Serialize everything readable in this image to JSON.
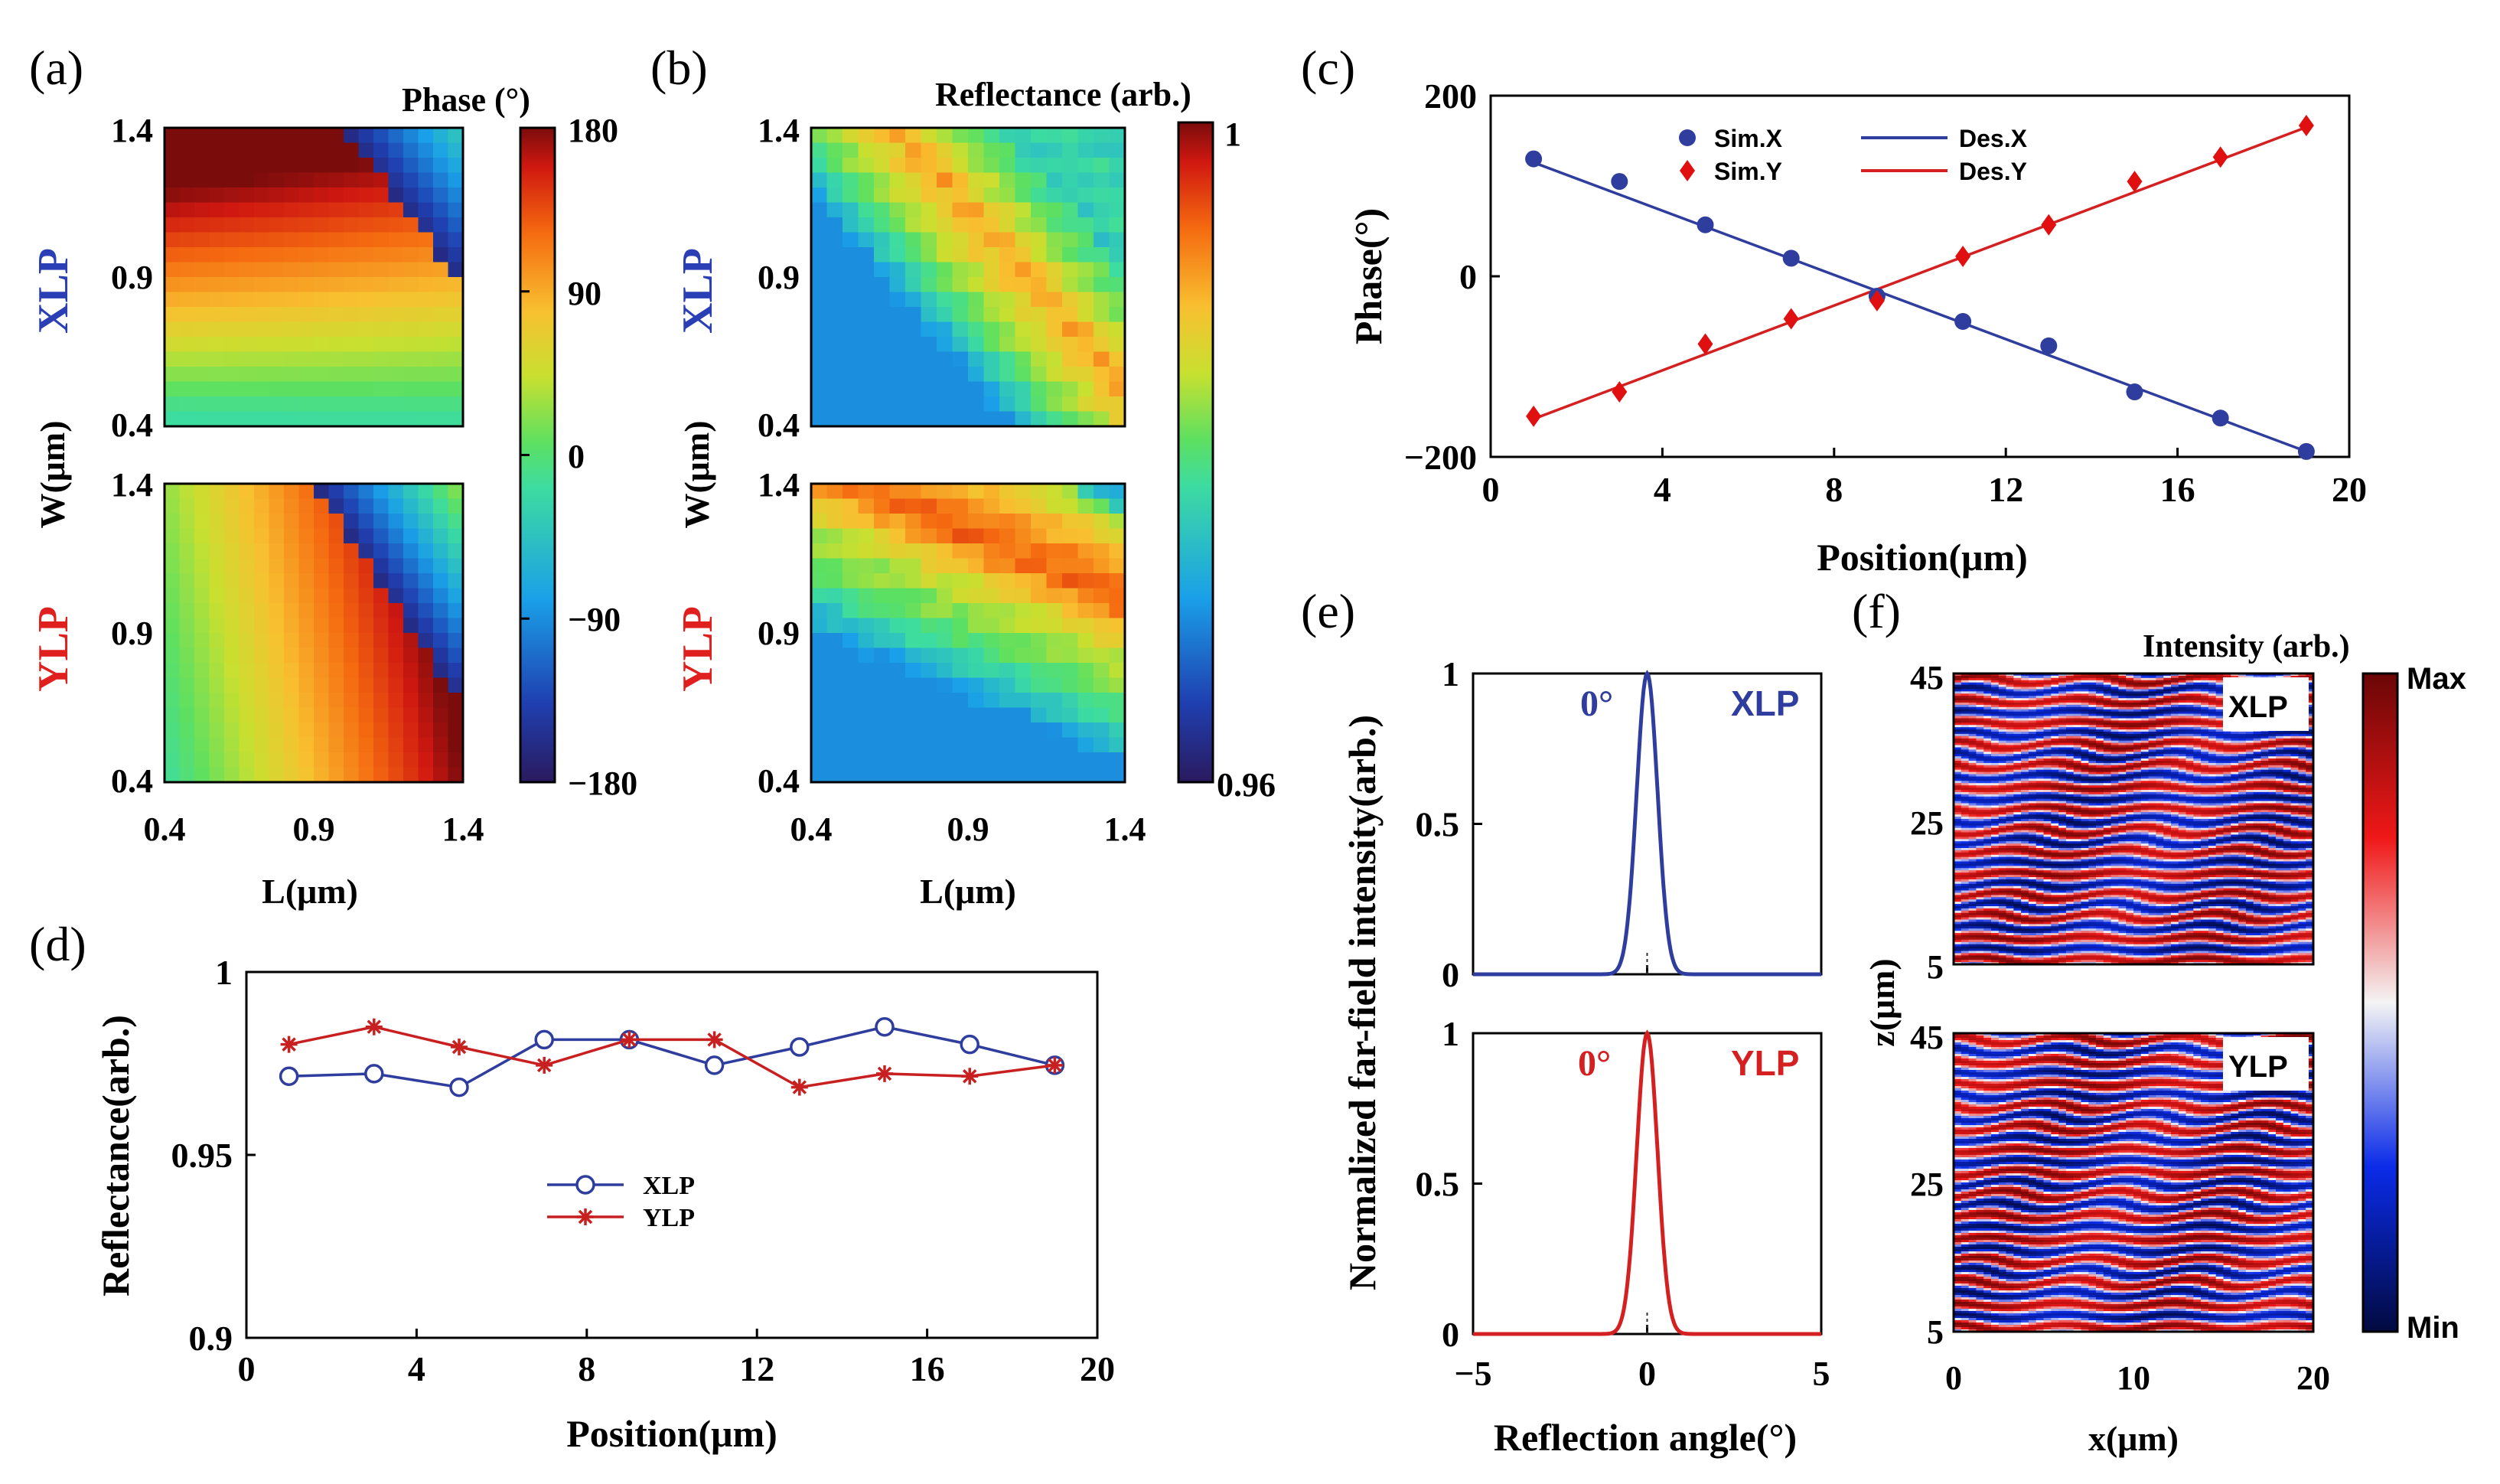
{
  "panel_labels": [
    "(a)",
    "(b)",
    "(c)",
    "(d)",
    "(e)",
    "(f)"
  ],
  "colors": {
    "blue": "#2f3e9e",
    "red": "#d42020",
    "xlp": "#2a3fb5",
    "ylp": "#e0201f"
  },
  "chart_data": [
    {
      "id": "a",
      "type": "heatmap",
      "title": "Phase (°)",
      "xlabel": "L(μm)",
      "ylabel": "W(μm)",
      "row_labels": [
        "XLP",
        "YLP"
      ],
      "xticks": [
        "0.4",
        "0.9",
        "1.4"
      ],
      "yticks": [
        "1.4",
        "0.9",
        "0.4"
      ],
      "xlim": [
        0.4,
        1.4
      ],
      "ylim": [
        0.4,
        1.4
      ],
      "colorbar": {
        "min": -180,
        "max": 180,
        "ticks": [
          "180",
          "90",
          "0",
          "−90",
          "−180"
        ],
        "tick_values": [
          180,
          90,
          0,
          -90,
          -180
        ]
      }
    },
    {
      "id": "b",
      "type": "heatmap",
      "title": "Reflectance (arb.)",
      "xlabel": "L(μm)",
      "ylabel": "W(μm)",
      "row_labels": [
        "XLP",
        "YLP"
      ],
      "xticks": [
        "0.4",
        "0.9",
        "1.4"
      ],
      "yticks": [
        "1.4",
        "0.9",
        "0.4"
      ],
      "xlim": [
        0.4,
        1.4
      ],
      "ylim": [
        0.4,
        1.4
      ],
      "colorbar": {
        "min": 0.96,
        "max": 1,
        "ticks": [
          "1",
          "0.96"
        ],
        "tick_values": [
          1,
          0.96
        ]
      }
    },
    {
      "id": "c",
      "type": "scatter",
      "xlabel": "Position(μm)",
      "ylabel": "Phase(°)",
      "xlim": [
        0,
        20
      ],
      "ylim": [
        -200,
        200
      ],
      "xticks": [
        "0",
        "4",
        "8",
        "12",
        "16",
        "20"
      ],
      "xtick_values": [
        0,
        4,
        8,
        12,
        16,
        20
      ],
      "yticks": [
        "200",
        "0",
        "−200"
      ],
      "ytick_values": [
        200,
        0,
        -200
      ],
      "legend": [
        "Sim.X",
        "Des.X",
        "Sim.Y",
        "Des.Y"
      ],
      "series": [
        {
          "name": "Sim.X",
          "kind": "points",
          "marker": "circle",
          "color": "#2f3e9e",
          "x": [
            1,
            3,
            5,
            7,
            9,
            11,
            13,
            15,
            17,
            19
          ],
          "y": [
            130,
            105,
            57,
            20,
            -22,
            -50,
            -77,
            -128,
            -157,
            -194
          ]
        },
        {
          "name": "Des.X",
          "kind": "line",
          "color": "#2f3e9e",
          "x": [
            1,
            19
          ],
          "y": [
            126,
            -194
          ]
        },
        {
          "name": "Sim.Y",
          "kind": "points",
          "marker": "diamond",
          "color": "#e01010",
          "x": [
            1,
            3,
            5,
            7,
            9,
            11,
            13,
            15,
            17,
            19
          ],
          "y": [
            -155,
            -128,
            -75,
            -47,
            -27,
            22,
            57,
            105,
            132,
            167
          ]
        },
        {
          "name": "Des.Y",
          "kind": "line",
          "color": "#d42020",
          "x": [
            1,
            19
          ],
          "y": [
            -158,
            165
          ]
        }
      ]
    },
    {
      "id": "d",
      "type": "line",
      "xlabel": "Position(μm)",
      "ylabel": "Reflectance(arb.)",
      "xlim": [
        0,
        20
      ],
      "ylim": [
        0.9,
        1
      ],
      "xticks": [
        "0",
        "4",
        "8",
        "12",
        "16",
        "20"
      ],
      "xtick_values": [
        0,
        4,
        8,
        12,
        16,
        20
      ],
      "yticks": [
        "1",
        "0.95",
        "0.9"
      ],
      "ytick_values": [
        1,
        0.95,
        0.9
      ],
      "legend": [
        "XLP",
        "YLP"
      ],
      "series": [
        {
          "name": "XLP",
          "marker": "circle",
          "color": "#2f3e9e",
          "x": [
            1,
            3,
            5,
            7,
            9,
            11,
            13,
            15,
            17,
            19
          ],
          "y": [
            0.9715,
            0.9722,
            0.9685,
            0.9815,
            0.9815,
            0.9745,
            0.9795,
            0.985,
            0.9802,
            0.9745
          ]
        },
        {
          "name": "YLP",
          "marker": "star",
          "color": "#c82020",
          "x": [
            1,
            3,
            5,
            7,
            9,
            11,
            13,
            15,
            17,
            19
          ],
          "y": [
            0.9802,
            0.985,
            0.9795,
            0.9745,
            0.9815,
            0.9815,
            0.9685,
            0.9722,
            0.9715,
            0.9745
          ]
        }
      ]
    },
    {
      "id": "e",
      "type": "line",
      "xlabel": "Reflection angle(°)",
      "ylabel": "Normalized far-field intensity(arb.)",
      "xlim": [
        -5,
        5
      ],
      "ylim": [
        0,
        1
      ],
      "xticks": [
        "−5",
        "0",
        "5"
      ],
      "xtick_values": [
        -5,
        0,
        5
      ],
      "yticks": [
        "1",
        "0.5",
        "0"
      ],
      "ytick_values": [
        1,
        0.5,
        0
      ],
      "subplots": [
        {
          "label": "XLP",
          "peak_label": "0°",
          "color": "#2f3e9e",
          "peak_x": 0,
          "sigma": 0.3
        },
        {
          "label": "YLP",
          "peak_label": "0°",
          "color": "#d42020",
          "peak_x": 0,
          "sigma": 0.3
        }
      ]
    },
    {
      "id": "f",
      "type": "heatmap",
      "title": "Intensity (arb.)",
      "xlabel": "x(μm)",
      "ylabel": "z(μm)",
      "xlim": [
        0,
        20
      ],
      "ylim": [
        5,
        45
      ],
      "xticks": [
        "0",
        "10",
        "20"
      ],
      "yticks": [
        "45",
        "25",
        "5"
      ],
      "subplots": [
        "XLP",
        "YLP"
      ],
      "colorbar": {
        "ticks": [
          "Max",
          "Min"
        ]
      }
    }
  ]
}
